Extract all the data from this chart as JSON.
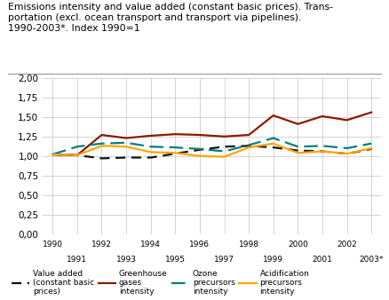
{
  "title_line1": "Emissions intensity and value added (constant basic prices). Trans-",
  "title_line2": "portation (excl. ocean transport and transport via pipelines).",
  "title_line3": "1990-2003*. Index 1990=1",
  "years": [
    "1990",
    "1991",
    "1992",
    "1993",
    "1994",
    "1995",
    "1996",
    "1997",
    "1998",
    "1999",
    "2000",
    "2001",
    "2002",
    "2003*"
  ],
  "value_added": [
    1.02,
    1.01,
    0.97,
    0.98,
    0.98,
    1.03,
    1.08,
    1.12,
    1.13,
    1.11,
    1.07,
    1.06,
    1.03,
    1.09
  ],
  "greenhouse": [
    1.02,
    1.01,
    1.27,
    1.23,
    1.26,
    1.28,
    1.27,
    1.25,
    1.27,
    1.52,
    1.41,
    1.51,
    1.46,
    1.56
  ],
  "ozone": [
    1.02,
    1.12,
    1.16,
    1.17,
    1.12,
    1.11,
    1.09,
    1.06,
    1.14,
    1.23,
    1.12,
    1.13,
    1.1,
    1.16
  ],
  "acidification": [
    1.02,
    1.01,
    1.13,
    1.12,
    1.05,
    1.04,
    1.0,
    0.99,
    1.11,
    1.16,
    1.04,
    1.06,
    1.03,
    1.1
  ],
  "value_added_color": "#111111",
  "greenhouse_color": "#8B1A00",
  "ozone_color": "#008080",
  "acidification_color": "#FFA500",
  "ylim": [
    0.0,
    2.0
  ],
  "yticks": [
    0.0,
    0.25,
    0.5,
    0.75,
    1.0,
    1.25,
    1.5,
    1.75,
    2.0
  ],
  "ytick_labels": [
    "0,00",
    "0,25",
    "0,50",
    "0,75",
    "1,00",
    "1,25",
    "1,50",
    "1,75",
    "2,00"
  ],
  "background_color": "#ffffff",
  "grid_color": "#cccccc",
  "legend_labels": [
    "Value added\n(constant basic\nprices)",
    "Greenhouse\ngases\nintensity",
    "Ozone\nprecursors\nintensity",
    "Acidification\nprecursors\nintensity"
  ]
}
